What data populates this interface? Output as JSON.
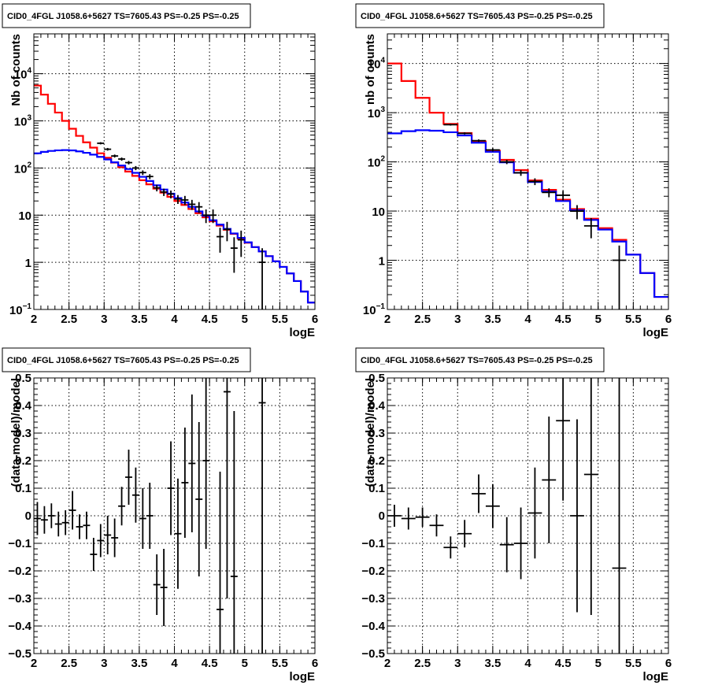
{
  "chart_data": [
    {
      "type": "histogram",
      "title": "CID0_4FGL J1058.6+5627 TS=7605.43 PS=-0.25 PS=-0.25",
      "xlabel": "logE",
      "ylabel": "Nb of counts",
      "xlim": [
        2,
        6
      ],
      "ylim": [
        0.1,
        70000
      ],
      "yscale": "log",
      "grid": true,
      "xticks": [
        "2",
        "2.5",
        "3",
        "3.5",
        "4",
        "4.5",
        "5",
        "5.5",
        "6"
      ],
      "yticks": [
        {
          "value": 0.1,
          "base": "10",
          "exp": "−1"
        },
        {
          "value": 1,
          "label": "1"
        },
        {
          "value": 10,
          "label": "10"
        },
        {
          "value": 100,
          "base": "10",
          "exp": "2"
        },
        {
          "value": 1000,
          "base": "10",
          "exp": "3"
        },
        {
          "value": 10000,
          "base": "10",
          "exp": "4"
        }
      ],
      "bin_edges": [
        2.0,
        2.1,
        2.2,
        2.3,
        2.4,
        2.5,
        2.6,
        2.7,
        2.8,
        2.9,
        3.0,
        3.1,
        3.2,
        3.3,
        3.4,
        3.5,
        3.6,
        3.7,
        3.8,
        3.9,
        4.0,
        4.1,
        4.2,
        4.3,
        4.4,
        4.5,
        4.6,
        4.7,
        4.8,
        4.9,
        5.0,
        5.1,
        5.2,
        5.3,
        5.4,
        5.5,
        5.6,
        5.7,
        5.8,
        5.9,
        6.0
      ],
      "series": [
        {
          "color": "#ff0000",
          "style": "step",
          "values": [
            5600,
            3600,
            2300,
            1500,
            1000,
            680,
            480,
            350,
            270,
            205,
            165,
            130,
            104,
            84,
            68,
            55,
            45,
            36.5,
            30,
            24.5,
            20,
            16.5,
            13.5,
            11,
            9,
            7.4,
            6,
            4.9,
            4,
            3.2,
            2.6,
            2.1,
            1.7,
            1.35,
            1.05,
            0.8,
            0.58,
            0.4,
            0.24,
            0.14
          ]
        },
        {
          "color": "#0000ff",
          "style": "step",
          "values": [
            205,
            220,
            230,
            237,
            240,
            236,
            225,
            210,
            192,
            172,
            152,
            132,
            113,
            95,
            79,
            65,
            53,
            43,
            35,
            28.5,
            23,
            18.5,
            15,
            12,
            9.7,
            7.8,
            6.3,
            5.1,
            4.1,
            3.3,
            2.65,
            2.1,
            1.7,
            1.35,
            1.05,
            0.8,
            0.58,
            0.4,
            0.24,
            0.14
          ]
        },
        {
          "color": "#000000",
          "style": "errorbars",
          "points": [
            {
              "x": 2.95,
              "y": 335,
              "err": 18
            },
            {
              "x": 3.05,
              "y": 250,
              "err": 16
            },
            {
              "x": 3.15,
              "y": 180,
              "err": 13
            },
            {
              "x": 3.25,
              "y": 155,
              "err": 12
            },
            {
              "x": 3.35,
              "y": 130,
              "err": 11
            },
            {
              "x": 3.45,
              "y": 100,
              "err": 10
            },
            {
              "x": 3.55,
              "y": 80,
              "err": 9
            },
            {
              "x": 3.65,
              "y": 66,
              "err": 8
            },
            {
              "x": 3.75,
              "y": 38,
              "err": 6
            },
            {
              "x": 3.85,
              "y": 31,
              "err": 5.5
            },
            {
              "x": 3.95,
              "y": 28,
              "err": 5.3
            },
            {
              "x": 4.05,
              "y": 22,
              "err": 4.7
            },
            {
              "x": 4.15,
              "y": 21,
              "err": 4.6
            },
            {
              "x": 4.25,
              "y": 17,
              "err": 4.1
            },
            {
              "x": 4.35,
              "y": 15,
              "err": 3.9
            },
            {
              "x": 4.45,
              "y": 10,
              "err": 3.2
            },
            {
              "x": 4.55,
              "y": 10,
              "err": 3.2
            },
            {
              "x": 4.65,
              "y": 3.5,
              "err": 1.9
            },
            {
              "x": 4.75,
              "y": 5,
              "err": 2.2
            },
            {
              "x": 4.85,
              "y": 2,
              "err": 1.4
            },
            {
              "x": 4.95,
              "y": 3,
              "err": 1.7
            },
            {
              "x": 5.25,
              "y": 1,
              "err": 0.99
            }
          ]
        }
      ]
    },
    {
      "type": "histogram",
      "title": "CID0_4FGL J1058.6+5627 TS=7605.43 PS=-0.25 PS=-0.25",
      "xlabel": "logE",
      "ylabel": "nb of counts",
      "xlim": [
        2,
        6
      ],
      "ylim": [
        0.1,
        40000
      ],
      "yscale": "log",
      "grid": true,
      "xticks": [
        "2",
        "2.5",
        "3",
        "3.5",
        "4",
        "4.5",
        "5",
        "5.5",
        "6"
      ],
      "yticks": [
        {
          "value": 0.1,
          "base": "10",
          "exp": "−1"
        },
        {
          "value": 1,
          "label": "1"
        },
        {
          "value": 10,
          "label": "10"
        },
        {
          "value": 100,
          "base": "10",
          "exp": "2"
        },
        {
          "value": 1000,
          "base": "10",
          "exp": "3"
        },
        {
          "value": 10000,
          "base": "10",
          "exp": "4"
        }
      ],
      "bin_edges": [
        2.0,
        2.2,
        2.4,
        2.6,
        2.8,
        3.0,
        3.2,
        3.4,
        3.6,
        3.8,
        4.0,
        4.2,
        4.4,
        4.6,
        4.8,
        5.0,
        5.2,
        5.4,
        5.6,
        5.8,
        6.0
      ],
      "series": [
        {
          "color": "#ff0000",
          "style": "step",
          "values": [
            10000,
            4400,
            2000,
            1000,
            590,
            385,
            260,
            170,
            110,
            68,
            42,
            27,
            17,
            11,
            7,
            4.5,
            2.6,
            1.3,
            0.55,
            0.18
          ]
        },
        {
          "color": "#0000ff",
          "style": "step",
          "values": [
            380,
            420,
            440,
            430,
            400,
            345,
            245,
            160,
            98,
            60,
            39,
            25,
            16,
            10.4,
            6.6,
            4.2,
            2.4,
            1.3,
            0.55,
            0.18
          ]
        },
        {
          "color": "#000000",
          "style": "errorbars",
          "points": [
            {
              "x": 2.9,
              "y": 570,
              "err": 24
            },
            {
              "x": 3.1,
              "y": 380,
              "err": 19
            },
            {
              "x": 3.3,
              "y": 270,
              "err": 16
            },
            {
              "x": 3.5,
              "y": 175,
              "err": 13
            },
            {
              "x": 3.7,
              "y": 100,
              "err": 10
            },
            {
              "x": 3.9,
              "y": 60,
              "err": 8
            },
            {
              "x": 4.1,
              "y": 40,
              "err": 6.3
            },
            {
              "x": 4.3,
              "y": 24,
              "err": 4.9
            },
            {
              "x": 4.5,
              "y": 21,
              "err": 4.6
            },
            {
              "x": 4.7,
              "y": 10,
              "err": 3.2
            },
            {
              "x": 4.9,
              "y": 5,
              "err": 2.2
            },
            {
              "x": 5.3,
              "y": 1,
              "err": 0.99
            }
          ]
        }
      ]
    },
    {
      "type": "scatter",
      "title": "CID0_4FGL J1058.6+5627 TS=7605.43 PS=-0.25 PS=-0.25",
      "xlabel": "logE",
      "ylabel": "(data-model)/model",
      "xlim": [
        2,
        6
      ],
      "ylim": [
        -0.5,
        0.5
      ],
      "grid": true,
      "xticks": [
        "2",
        "2.5",
        "3",
        "3.5",
        "4",
        "4.5",
        "5",
        "5.5",
        "6"
      ],
      "yticks": [
        "−0.5",
        "−0.4",
        "−0.3",
        "−0.2",
        "−0.1",
        "0",
        "0.1",
        "0.2",
        "0.3",
        "0.4",
        "0.5"
      ],
      "xbin": 0.1,
      "points": [
        {
          "x": 2.05,
          "y": -0.01,
          "err": 0.06
        },
        {
          "x": 2.15,
          "y": -0.015,
          "err": 0.05
        },
        {
          "x": 2.25,
          "y": 0.0,
          "err": 0.045
        },
        {
          "x": 2.35,
          "y": -0.03,
          "err": 0.045
        },
        {
          "x": 2.45,
          "y": -0.025,
          "err": 0.045
        },
        {
          "x": 2.55,
          "y": 0.02,
          "err": 0.07
        },
        {
          "x": 2.65,
          "y": -0.04,
          "err": 0.045
        },
        {
          "x": 2.75,
          "y": -0.035,
          "err": 0.05
        },
        {
          "x": 2.85,
          "y": -0.14,
          "err": 0.06
        },
        {
          "x": 2.95,
          "y": -0.09,
          "err": 0.06
        },
        {
          "x": 3.05,
          "y": -0.07,
          "err": 0.07
        },
        {
          "x": 3.15,
          "y": -0.08,
          "err": 0.07
        },
        {
          "x": 3.25,
          "y": 0.035,
          "err": 0.07
        },
        {
          "x": 3.35,
          "y": 0.14,
          "err": 0.1
        },
        {
          "x": 3.45,
          "y": 0.075,
          "err": 0.1
        },
        {
          "x": 3.55,
          "y": -0.01,
          "err": 0.11
        },
        {
          "x": 3.65,
          "y": 0.0,
          "err": 0.12
        },
        {
          "x": 3.75,
          "y": -0.25,
          "err": 0.11
        },
        {
          "x": 3.85,
          "y": -0.26,
          "err": 0.14
        },
        {
          "x": 3.95,
          "y": 0.1,
          "err": 0.17
        },
        {
          "x": 4.05,
          "y": -0.065,
          "err": 0.2
        },
        {
          "x": 4.15,
          "y": 0.12,
          "err": 0.2
        },
        {
          "x": 4.25,
          "y": 0.19,
          "err": 0.25
        },
        {
          "x": 4.35,
          "y": 0.06,
          "err": 0.28
        },
        {
          "x": 4.45,
          "y": 0.2,
          "err": 0.32
        },
        {
          "x": 4.65,
          "y": -0.34,
          "err": 0.5
        },
        {
          "x": 4.75,
          "y": 0.45,
          "err": 0.75
        },
        {
          "x": 4.85,
          "y": -0.22,
          "err": 0.6
        },
        {
          "x": 5.25,
          "y": 0.41,
          "err": 1.0
        }
      ]
    },
    {
      "type": "scatter",
      "title": "CID0_4FGL J1058.6+5627 TS=7605.43 PS=-0.25 PS=-0.25",
      "xlabel": "logE",
      "ylabel": "(data-model)/model",
      "xlim": [
        2,
        6
      ],
      "ylim": [
        -0.5,
        0.5
      ],
      "grid": true,
      "xticks": [
        "2",
        "2.5",
        "3",
        "3.5",
        "4",
        "4.5",
        "5",
        "5.5",
        "6"
      ],
      "yticks": [
        "−0.5",
        "−0.4",
        "−0.3",
        "−0.2",
        "−0.1",
        "0",
        "0.1",
        "0.2",
        "0.3",
        "0.4",
        "0.5"
      ],
      "xbin": 0.2,
      "points": [
        {
          "x": 2.1,
          "y": 0.0,
          "err": 0.04
        },
        {
          "x": 2.3,
          "y": -0.01,
          "err": 0.04
        },
        {
          "x": 2.5,
          "y": -0.005,
          "err": 0.035
        },
        {
          "x": 2.7,
          "y": -0.035,
          "err": 0.04
        },
        {
          "x": 2.9,
          "y": -0.115,
          "err": 0.04
        },
        {
          "x": 3.1,
          "y": -0.065,
          "err": 0.05
        },
        {
          "x": 3.3,
          "y": 0.08,
          "err": 0.07
        },
        {
          "x": 3.5,
          "y": 0.035,
          "err": 0.08
        },
        {
          "x": 3.7,
          "y": -0.105,
          "err": 0.1
        },
        {
          "x": 3.9,
          "y": -0.1,
          "err": 0.13
        },
        {
          "x": 4.1,
          "y": 0.01,
          "err": 0.165
        },
        {
          "x": 4.3,
          "y": 0.13,
          "err": 0.23
        },
        {
          "x": 4.5,
          "y": 0.345,
          "err": 0.29
        },
        {
          "x": 4.7,
          "y": 0.0,
          "err": 0.35
        },
        {
          "x": 4.9,
          "y": 0.15,
          "err": 0.51
        },
        {
          "x": 5.3,
          "y": -0.19,
          "err": 1.0
        }
      ]
    }
  ]
}
